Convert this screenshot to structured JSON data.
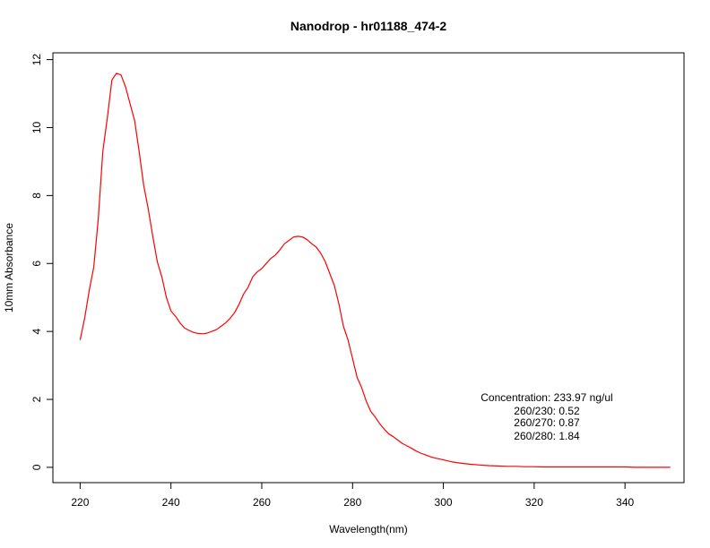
{
  "chart_data": {
    "type": "line",
    "title": "Nanodrop - hr01188_474-2",
    "xlabel": "Wavelength(nm)",
    "ylabel": "10mm Absorbance",
    "xlim": [
      214,
      353
    ],
    "ylim": [
      -0.45,
      12.2
    ],
    "x_ticks": [
      220,
      240,
      260,
      280,
      300,
      320,
      340
    ],
    "y_ticks": [
      0,
      2,
      4,
      6,
      8,
      10,
      12
    ],
    "grid": false,
    "series": [
      {
        "color": "#ff0000",
        "x": [
          220,
          221,
          222,
          223,
          224,
          225,
          226,
          227,
          228,
          229,
          230,
          231,
          232,
          233,
          234,
          235,
          236,
          237,
          238,
          239,
          240,
          241,
          242,
          243,
          244,
          245,
          246,
          247,
          248,
          249,
          250,
          251,
          252,
          253,
          254,
          255,
          256,
          257,
          258,
          259,
          260,
          261,
          262,
          263,
          264,
          265,
          266,
          267,
          268,
          269,
          270,
          271,
          272,
          273,
          274,
          275,
          276,
          277,
          278,
          279,
          280,
          281,
          282,
          283,
          284,
          285,
          286,
          287,
          288,
          289,
          290,
          291,
          292,
          293,
          294,
          295,
          296,
          297,
          298,
          299,
          300,
          302,
          304,
          306,
          308,
          310,
          312,
          314,
          316,
          318,
          320,
          322,
          324,
          326,
          328,
          330,
          332,
          334,
          336,
          338,
          340,
          342,
          344,
          346,
          348,
          350
        ],
        "y": [
          3.75,
          4.4,
          5.2,
          5.9,
          7.3,
          9.3,
          10.3,
          11.4,
          11.6,
          11.55,
          11.2,
          10.7,
          10.2,
          9.3,
          8.3,
          7.6,
          6.8,
          6.05,
          5.6,
          5.0,
          4.6,
          4.45,
          4.25,
          4.1,
          4.03,
          3.97,
          3.94,
          3.93,
          3.95,
          4.0,
          4.05,
          4.15,
          4.25,
          4.38,
          4.55,
          4.8,
          5.1,
          5.3,
          5.6,
          5.75,
          5.85,
          6.0,
          6.15,
          6.25,
          6.4,
          6.58,
          6.68,
          6.78,
          6.8,
          6.78,
          6.7,
          6.58,
          6.48,
          6.3,
          6.05,
          5.7,
          5.35,
          4.8,
          4.15,
          3.75,
          3.2,
          2.65,
          2.35,
          1.95,
          1.65,
          1.48,
          1.28,
          1.12,
          0.98,
          0.9,
          0.8,
          0.7,
          0.63,
          0.56,
          0.48,
          0.42,
          0.37,
          0.32,
          0.28,
          0.25,
          0.22,
          0.16,
          0.12,
          0.09,
          0.07,
          0.05,
          0.04,
          0.03,
          0.03,
          0.02,
          0.02,
          0.01,
          0.01,
          0.01,
          0.01,
          0.01,
          0.01,
          0.01,
          0.01,
          0.01,
          0.01,
          0.0,
          0.0,
          0.0,
          0.0,
          0.0
        ]
      }
    ],
    "annotations": [
      "Concentration: 233.97 ng/ul",
      "260/230: 0.52",
      "260/270: 0.87",
      "260/280: 1.84"
    ]
  }
}
